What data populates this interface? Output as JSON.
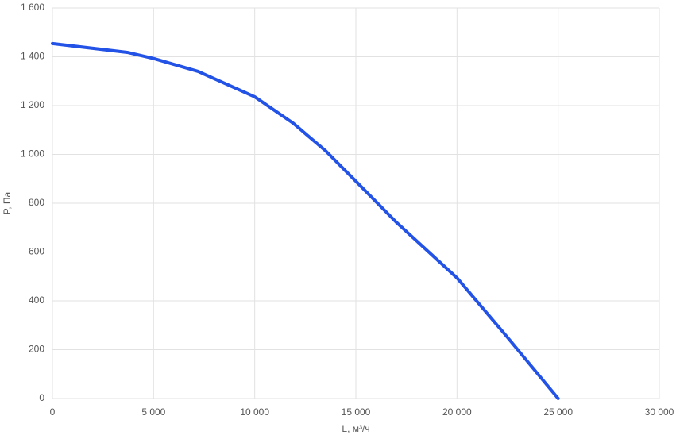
{
  "chart_data": {
    "type": "line",
    "xlabel": "L, м³/ч",
    "ylabel": "P, Па",
    "x": [
      0,
      3700,
      5000,
      7200,
      10000,
      11900,
      13500,
      15000,
      17000,
      20000,
      22500,
      25000
    ],
    "series": [
      {
        "color": "#2352e6",
        "values": [
          1454,
          1418,
          1393,
          1340,
          1236,
          1128,
          1015,
          890,
          722,
          494,
          250,
          0
        ]
      }
    ],
    "xlim": [
      0,
      30000
    ],
    "xticks": [
      0,
      {
        "value": 5000,
        "label": "5 000"
      },
      {
        "value": 10000,
        "label": "10 000"
      },
      {
        "value": 15000,
        "label": "15 000"
      },
      {
        "value": 20000,
        "label": "20 000"
      },
      {
        "value": 25000,
        "label": "25 000"
      },
      {
        "value": 30000,
        "label": "30 000"
      }
    ],
    "ylim": [
      0,
      1600
    ],
    "yticks": [
      0,
      200,
      400,
      600,
      800,
      {
        "value": 1000,
        "label": "1 000"
      },
      {
        "value": 1200,
        "label": "1 200"
      },
      {
        "value": 1400,
        "label": "1 400"
      },
      {
        "value": 1600,
        "label": "1 600"
      }
    ],
    "grid": true
  }
}
